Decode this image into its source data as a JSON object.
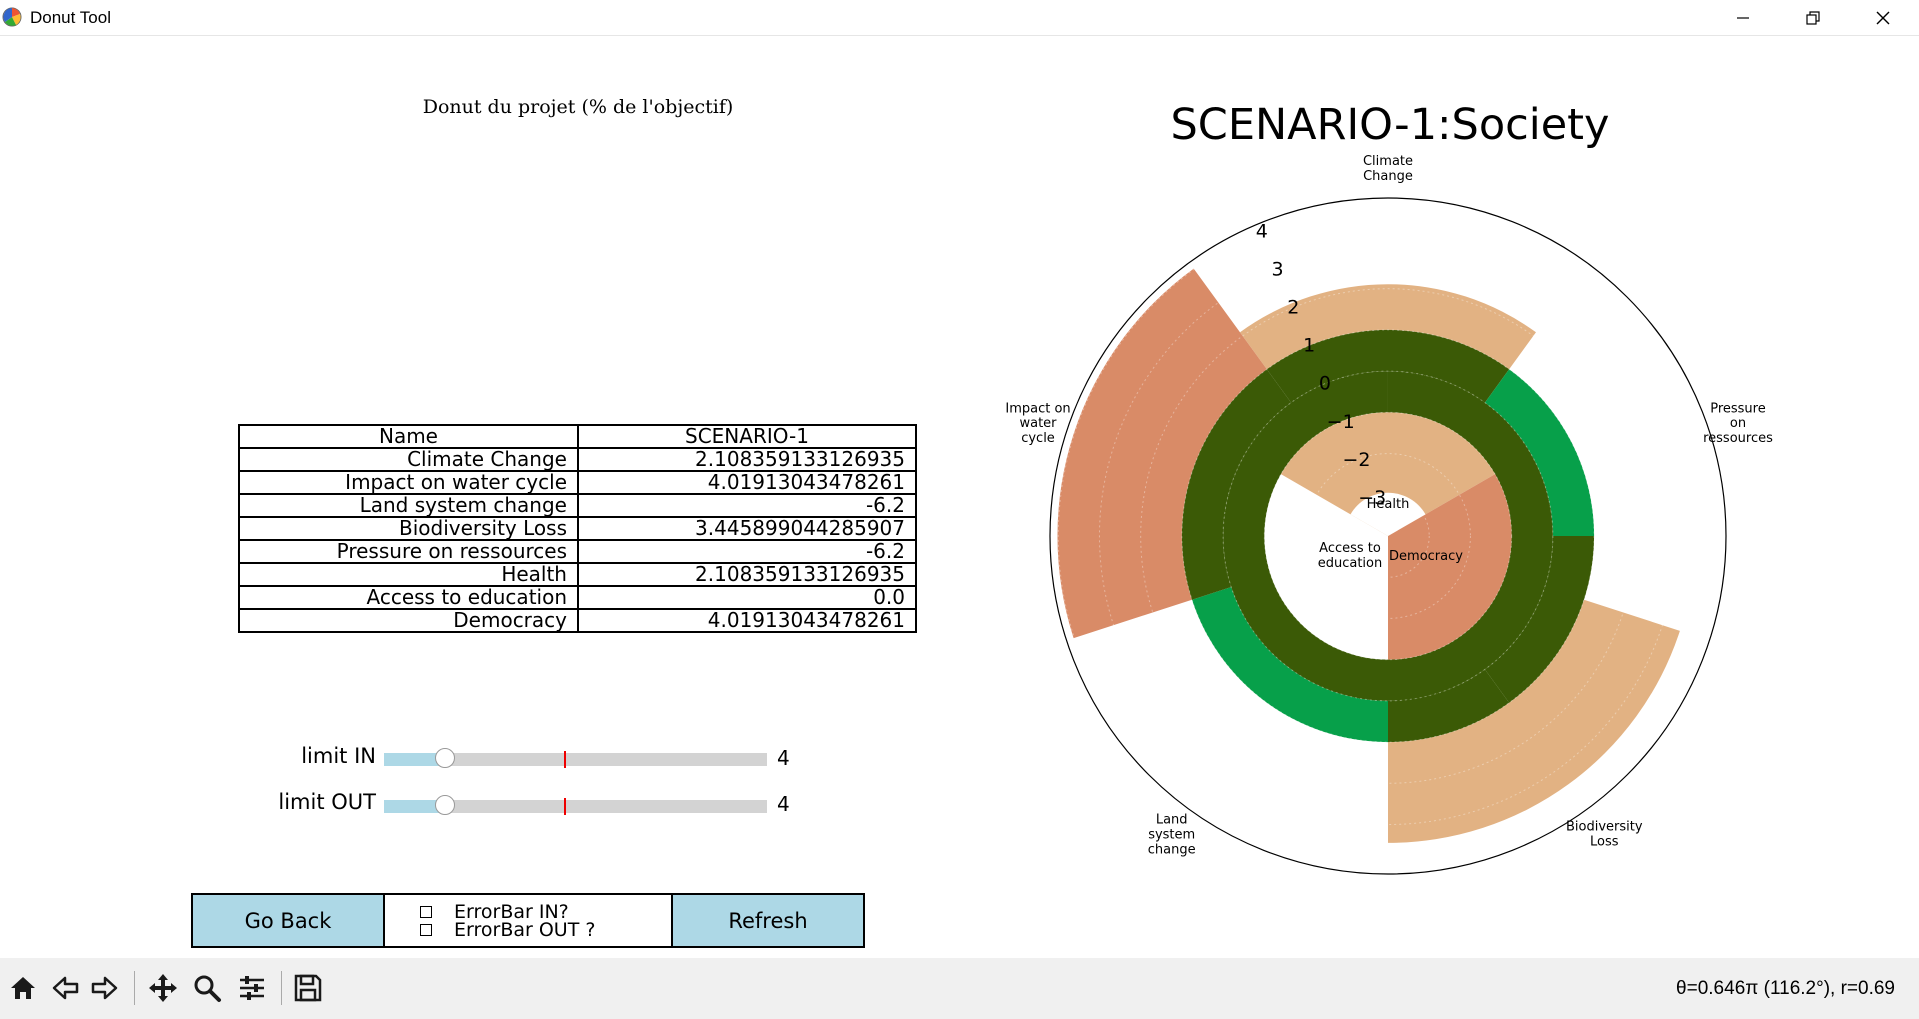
{
  "window": {
    "title": "Donut Tool"
  },
  "left_panel": {
    "title": "Donut du projet (% de l'objectif)",
    "table": {
      "headers": [
        "Name",
        "SCENARIO-1"
      ],
      "rows": [
        [
          "Climate Change",
          "2.108359133126935"
        ],
        [
          "Impact on water cycle",
          "4.01913043478261"
        ],
        [
          "Land system change",
          "-6.2"
        ],
        [
          "Biodiversity Loss",
          "3.445899044285907"
        ],
        [
          "Pressure on ressources",
          "-6.2"
        ],
        [
          "Health",
          "2.108359133126935"
        ],
        [
          "Access to education",
          "0.0"
        ],
        [
          "Democracy",
          "4.01913043478261"
        ]
      ]
    },
    "sliders": [
      {
        "label": "limit IN",
        "value": "4",
        "fraction": 0.16,
        "marker_fraction": 0.47
      },
      {
        "label": "limit OUT",
        "value": "4",
        "fraction": 0.16,
        "marker_fraction": 0.47
      }
    ],
    "buttons": {
      "back": "Go Back",
      "refresh": "Refresh"
    },
    "checkboxes": [
      {
        "label": "ErrorBar IN?",
        "checked": false
      },
      {
        "label": "ErrorBar OUT ?",
        "checked": false
      }
    ]
  },
  "chart_data": {
    "type": "polar-bar",
    "title": "SCENARIO-1:Society",
    "r_ticks": [
      "4",
      "3",
      "2",
      "1",
      "0",
      "−1",
      "−2",
      "−3"
    ],
    "r_range": [
      -4,
      4.2
    ],
    "outer_categories": [
      "Climate\nChange",
      "Pressure\non\nressources",
      "Biodiversity\nLoss",
      "Land\nsystem\nchange",
      "Impact on\nwater\ncycle"
    ],
    "inner_categories": [
      "Health",
      "Democracy",
      "Access to\neducation"
    ],
    "outer_bars": [
      {
        "category": "Climate Change",
        "value": 2.108359133126935
      },
      {
        "category": "Pressure on ressources",
        "value": -6.2
      },
      {
        "category": "Biodiversity Loss",
        "value": 3.445899044285907
      },
      {
        "category": "Land system change",
        "value": -6.2
      },
      {
        "category": "Impact on water cycle",
        "value": 4.01913043478261
      }
    ],
    "inner_bars": [
      {
        "category": "Health",
        "value": 2.108359133126935
      },
      {
        "category": "Democracy",
        "value": 4.01913043478261
      },
      {
        "category": "Access to education",
        "value": 0.0
      }
    ],
    "colors": {
      "ring_dark": "#3b5a06",
      "ring_green": "#07a04a",
      "bar_light": "#e2b283",
      "bar_dark": "#d98b67"
    }
  },
  "toolbar": {
    "icons": [
      "home-icon",
      "back-arrow-icon",
      "forward-arrow-icon",
      "pan-icon",
      "zoom-icon",
      "configure-subplots-icon",
      "save-icon"
    ],
    "coordinates": "θ=0.646π (116.2°), r=0.69"
  }
}
